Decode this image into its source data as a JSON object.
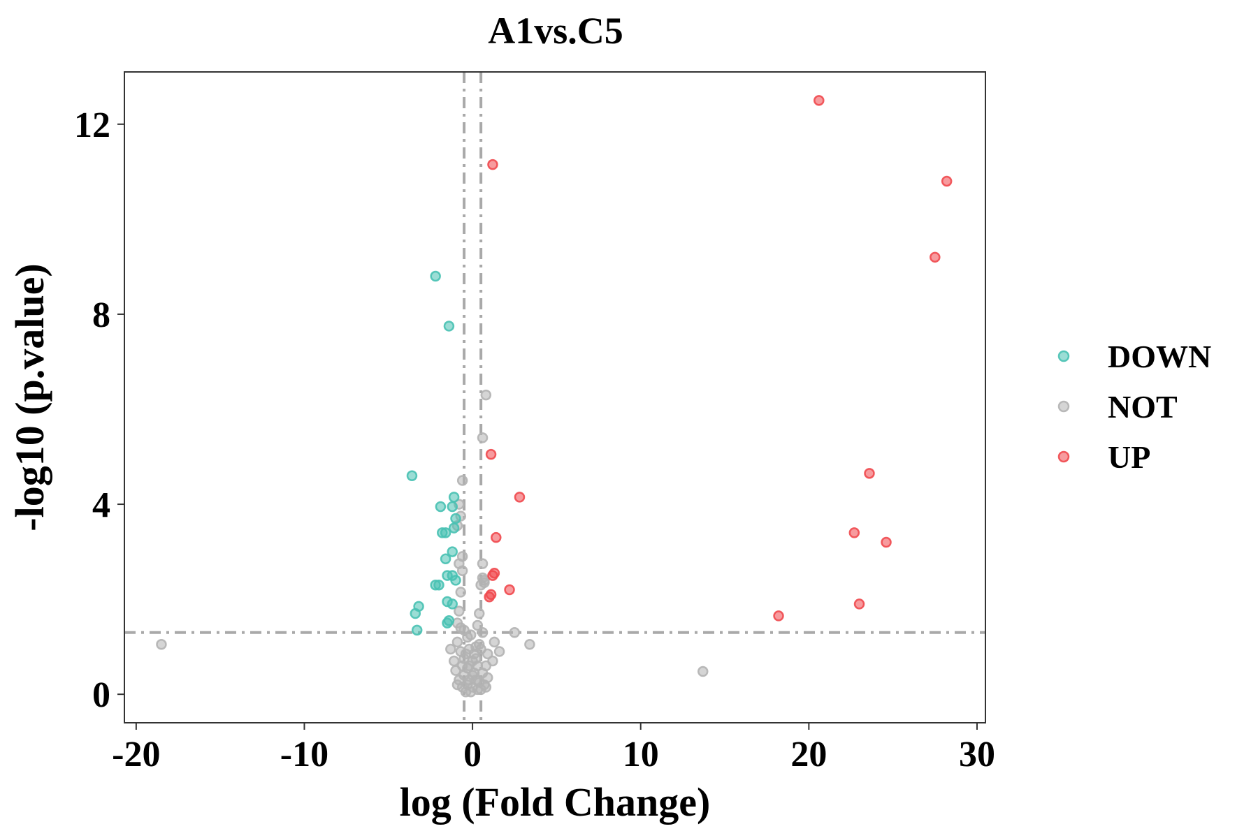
{
  "chart_data": {
    "type": "scatter",
    "title": "A1vs.C5",
    "xlabel": "log (Fold Change)",
    "ylabel": "-log10 (p.value)",
    "xlim": [
      -20.7,
      30.5
    ],
    "ylim": [
      -0.6,
      13.1
    ],
    "x_ticks": [
      -20,
      -10,
      0,
      10,
      20,
      30
    ],
    "x_tick_labels": [
      "-20",
      "-10",
      "0",
      "10",
      "20",
      "30"
    ],
    "y_ticks": [
      0,
      4,
      8,
      12
    ],
    "y_tick_labels": [
      "0",
      "4",
      "8",
      "12"
    ],
    "grid": false,
    "legend": "right",
    "reference_lines": {
      "vertical_x": [
        -0.5,
        0.5
      ],
      "horizontal_y": 1.3,
      "color": "#a9a9a9",
      "style": "dashed"
    },
    "series": [
      {
        "name": "DOWN",
        "color": "#48c1b3",
        "points": [
          [
            -2.2,
            8.8
          ],
          [
            -1.4,
            7.75
          ],
          [
            -3.6,
            4.6
          ],
          [
            -1.1,
            4.15
          ],
          [
            -1.2,
            3.95
          ],
          [
            -1.9,
            3.95
          ],
          [
            -1.0,
            3.7
          ],
          [
            -1.6,
            3.4
          ],
          [
            -1.8,
            3.4
          ],
          [
            -1.1,
            3.5
          ],
          [
            -1.2,
            3.0
          ],
          [
            -1.6,
            2.85
          ],
          [
            -1.5,
            2.5
          ],
          [
            -1.2,
            2.5
          ],
          [
            -1.0,
            2.4
          ],
          [
            -2.0,
            2.3
          ],
          [
            -2.2,
            2.3
          ],
          [
            -1.5,
            1.95
          ],
          [
            -1.2,
            1.9
          ],
          [
            -3.2,
            1.85
          ],
          [
            -3.4,
            1.7
          ],
          [
            -1.4,
            1.55
          ],
          [
            -1.5,
            1.5
          ],
          [
            -3.3,
            1.35
          ]
        ]
      },
      {
        "name": "NOT",
        "color": "#b3b3b3",
        "points": [
          [
            -18.5,
            1.05
          ],
          [
            13.7,
            0.48
          ],
          [
            3.4,
            1.05
          ],
          [
            2.5,
            1.3
          ],
          [
            0.8,
            6.3
          ],
          [
            0.6,
            5.4
          ],
          [
            -0.6,
            4.5
          ],
          [
            -0.8,
            4.0
          ],
          [
            -0.7,
            3.75
          ],
          [
            -0.9,
            3.55
          ],
          [
            -0.6,
            2.9
          ],
          [
            -0.8,
            2.75
          ],
          [
            -0.6,
            2.6
          ],
          [
            0.6,
            2.75
          ],
          [
            0.6,
            2.45
          ],
          [
            0.7,
            2.4
          ],
          [
            0.7,
            2.35
          ],
          [
            0.5,
            2.3
          ],
          [
            -0.7,
            2.15
          ],
          [
            -0.8,
            1.75
          ],
          [
            0.4,
            1.7
          ],
          [
            -0.9,
            1.5
          ],
          [
            -0.7,
            1.4
          ],
          [
            -0.5,
            1.35
          ],
          [
            0.3,
            1.45
          ],
          [
            0.6,
            1.3
          ],
          [
            1.3,
            1.1
          ],
          [
            1.6,
            0.9
          ],
          [
            -1.3,
            0.95
          ],
          [
            -1.1,
            0.7
          ],
          [
            -0.9,
            1.1
          ],
          [
            -0.3,
            1.2
          ],
          [
            0.2,
            1.0
          ],
          [
            0.9,
            0.85
          ],
          [
            1.2,
            0.7
          ],
          [
            -0.7,
            0.9
          ],
          [
            -0.5,
            0.75
          ],
          [
            -0.2,
            0.95
          ],
          [
            0.1,
            0.85
          ],
          [
            0.5,
            0.95
          ],
          [
            0.8,
            0.6
          ],
          [
            -1.0,
            0.5
          ],
          [
            -0.6,
            0.6
          ],
          [
            -0.3,
            0.55
          ],
          [
            0.0,
            0.7
          ],
          [
            0.3,
            0.6
          ],
          [
            0.6,
            0.45
          ],
          [
            0.9,
            0.35
          ],
          [
            -0.8,
            0.3
          ],
          [
            -0.5,
            0.4
          ],
          [
            -0.2,
            0.3
          ],
          [
            0.1,
            0.45
          ],
          [
            0.4,
            0.25
          ],
          [
            0.7,
            0.2
          ],
          [
            -0.6,
            0.15
          ],
          [
            -0.3,
            0.2
          ],
          [
            0.0,
            0.15
          ],
          [
            0.3,
            0.1
          ],
          [
            -0.1,
            0.05
          ],
          [
            0.2,
            0.3
          ],
          [
            -0.4,
            0.05
          ],
          [
            0.5,
            0.1
          ],
          [
            -0.9,
            0.2
          ],
          [
            0.8,
            0.15
          ],
          [
            0.0,
            0.4
          ],
          [
            -0.2,
            0.6
          ],
          [
            0.2,
            0.75
          ],
          [
            -0.4,
            0.85
          ],
          [
            0.4,
            1.05
          ],
          [
            -0.1,
            1.25
          ]
        ]
      },
      {
        "name": "UP",
        "color": "#f0494e",
        "points": [
          [
            20.6,
            12.5
          ],
          [
            1.2,
            11.15
          ],
          [
            28.2,
            10.8
          ],
          [
            27.5,
            9.2
          ],
          [
            1.1,
            5.05
          ],
          [
            23.6,
            4.65
          ],
          [
            2.8,
            4.15
          ],
          [
            1.4,
            3.3
          ],
          [
            22.7,
            3.4
          ],
          [
            24.6,
            3.2
          ],
          [
            1.3,
            2.55
          ],
          [
            1.2,
            2.5
          ],
          [
            2.2,
            2.2
          ],
          [
            1.1,
            2.1
          ],
          [
            1.0,
            2.05
          ],
          [
            23.0,
            1.9
          ],
          [
            18.2,
            1.65
          ]
        ]
      }
    ]
  }
}
